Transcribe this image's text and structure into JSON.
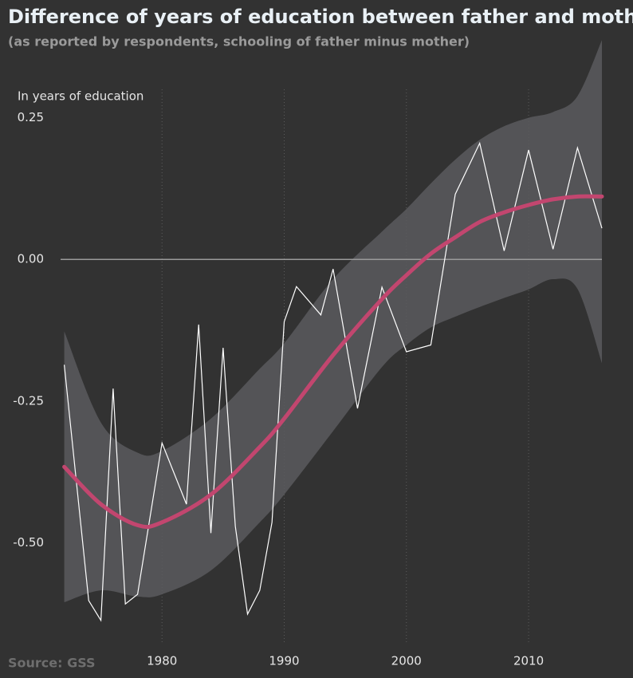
{
  "chart_data": {
    "type": "line",
    "title": "Difference of years of education between father and mother",
    "subtitle": "(as reported by respondents, schooling of father minus mother)",
    "y_label": "In years of education",
    "source": "Source: GSS",
    "xlim": [
      1971.7,
      2016
    ],
    "ylim": [
      -0.65,
      0.4
    ],
    "xticks": [
      1980,
      1990,
      2000,
      2010
    ],
    "yticks": [
      0.25,
      {
        "value": 0,
        "label": "0.00"
      },
      -0.25,
      {
        "value": -0.5,
        "label": "-0.50"
      }
    ],
    "grid": true,
    "x": [
      1972,
      1974,
      1975,
      1976,
      1977,
      1978,
      1980,
      1982,
      1983,
      1984,
      1985,
      1986,
      1987,
      1988,
      1989,
      1990,
      1991,
      1993,
      1994,
      1996,
      1998,
      2000,
      2002,
      2004,
      2006,
      2008,
      2010,
      2012,
      2014,
      2016
    ],
    "values": [
      -0.186,
      -0.602,
      -0.637,
      -0.228,
      -0.608,
      -0.591,
      -0.324,
      -0.432,
      -0.115,
      -0.483,
      -0.156,
      -0.471,
      -0.626,
      -0.584,
      -0.464,
      -0.11,
      -0.048,
      -0.098,
      -0.017,
      -0.263,
      -0.049,
      -0.163,
      -0.151,
      0.115,
      0.205,
      0.015,
      0.193,
      0.018,
      0.197,
      0.055
    ],
    "color": "#ffffff",
    "trend": {
      "x": [
        1972,
        1975,
        1978,
        1980,
        1984,
        1988,
        1990,
        1994,
        1998,
        2000,
        2002,
        2004,
        2006,
        2008,
        2010,
        2012,
        2014,
        2016
      ],
      "values": [
        -0.366,
        -0.432,
        -0.469,
        -0.464,
        -0.415,
        -0.331,
        -0.281,
        -0.169,
        -0.07,
        -0.028,
        0.01,
        0.039,
        0.066,
        0.083,
        0.096,
        0.106,
        0.111,
        0.111
      ],
      "upper": [
        -0.127,
        -0.288,
        -0.341,
        -0.338,
        -0.281,
        -0.193,
        -0.148,
        -0.035,
        0.049,
        0.089,
        0.134,
        0.176,
        0.211,
        0.235,
        0.25,
        0.26,
        0.288,
        0.387
      ],
      "lower": [
        -0.605,
        -0.584,
        -0.595,
        -0.591,
        -0.549,
        -0.464,
        -0.415,
        -0.303,
        -0.19,
        -0.151,
        -0.12,
        -0.101,
        -0.084,
        -0.068,
        -0.053,
        -0.035,
        -0.052,
        -0.183
      ],
      "color": "#c2466f",
      "band_color": "#5a5b5e"
    }
  }
}
